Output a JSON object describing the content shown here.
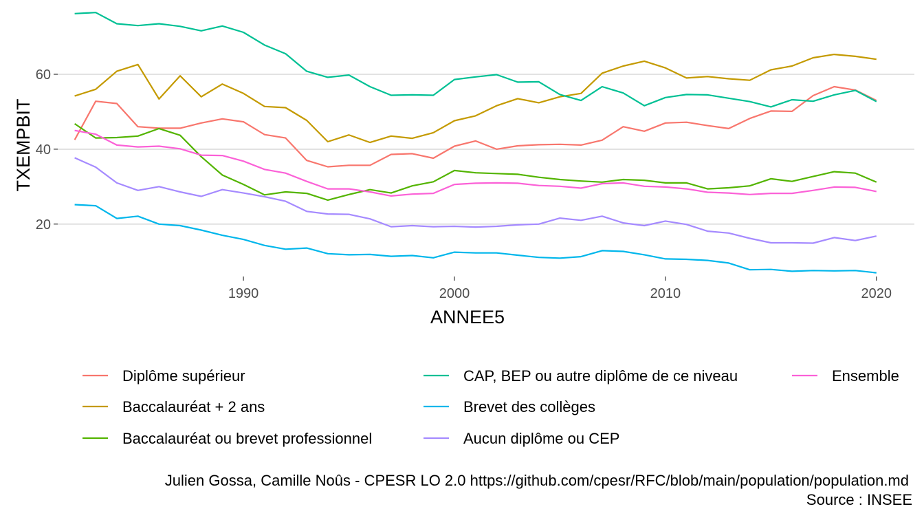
{
  "chart_data": {
    "type": "line",
    "xlabel": "ANNEE5",
    "ylabel": "TXEMPBIT",
    "xlim": [
      1981.2,
      2021.8
    ],
    "ylim": [
      6.0,
      78.0
    ],
    "x_ticks": [
      1990,
      2000,
      2010,
      2020
    ],
    "y_ticks": [
      20,
      40,
      60
    ],
    "grid": "horizontal major lines only",
    "legend_position": "bottom",
    "x": [
      1982,
      1983,
      1984,
      1985,
      1986,
      1987,
      1988,
      1989,
      1990,
      1991,
      1992,
      1993,
      1994,
      1995,
      1996,
      1997,
      1998,
      1999,
      2000,
      2001,
      2002,
      2003,
      2004,
      2005,
      2006,
      2007,
      2008,
      2009,
      2010,
      2011,
      2012,
      2013,
      2014,
      2015,
      2016,
      2017,
      2018,
      2019,
      2020
    ],
    "series": [
      {
        "name": "Diplôme supérieur",
        "color": "#F8766D",
        "values": [
          42.5,
          52.8,
          52.2,
          46.0,
          45.6,
          45.6,
          47.0,
          48.1,
          47.3,
          43.9,
          43.0,
          37.0,
          35.3,
          35.7,
          35.7,
          38.6,
          38.8,
          37.6,
          40.8,
          42.2,
          40.0,
          40.9,
          41.2,
          41.3,
          41.1,
          42.4,
          46.0,
          44.8,
          47.0,
          47.2,
          46.3,
          45.5,
          48.2,
          50.2,
          50.1,
          54.3,
          56.7,
          55.8,
          53.0
        ]
      },
      {
        "name": "Baccalauréat + 2 ans",
        "color": "#C49A00",
        "values": [
          54.2,
          56.0,
          60.8,
          62.6,
          53.4,
          59.6,
          54.0,
          57.4,
          54.9,
          51.4,
          51.1,
          47.7,
          42.0,
          43.8,
          41.8,
          43.5,
          42.9,
          44.4,
          47.6,
          48.9,
          51.6,
          53.5,
          52.4,
          54.0,
          54.9,
          60.3,
          62.2,
          63.5,
          61.7,
          59.0,
          59.4,
          58.8,
          58.4,
          61.2,
          62.2,
          64.4,
          65.3,
          64.8,
          64.0
        ]
      },
      {
        "name": "Baccalauréat ou brevet professionnel",
        "color": "#53B400",
        "values": [
          46.8,
          43.0,
          43.1,
          43.5,
          45.5,
          43.7,
          38.0,
          33.1,
          30.6,
          27.8,
          28.6,
          28.2,
          26.4,
          27.9,
          29.2,
          28.3,
          30.2,
          31.3,
          34.3,
          33.7,
          33.5,
          33.3,
          32.5,
          31.9,
          31.5,
          31.2,
          31.9,
          31.7,
          31.0,
          31.0,
          29.4,
          29.7,
          30.2,
          32.1,
          31.4,
          32.7,
          34.0,
          33.6,
          31.2
        ]
      },
      {
        "name": "CAP, BEP ou autre diplôme de ce niveau",
        "color": "#00C094",
        "values": [
          76.2,
          76.5,
          73.5,
          73.0,
          73.5,
          72.8,
          71.6,
          72.9,
          71.2,
          67.8,
          65.5,
          60.8,
          59.2,
          59.8,
          56.7,
          54.4,
          54.5,
          54.4,
          58.6,
          59.3,
          59.9,
          57.9,
          58.0,
          54.6,
          53.0,
          56.7,
          55.0,
          51.6,
          53.8,
          54.6,
          54.5,
          53.6,
          52.7,
          51.3,
          53.2,
          52.8,
          54.5,
          55.7,
          52.7
        ]
      },
      {
        "name": "Brevet des collèges",
        "color": "#00B6EB",
        "values": [
          25.2,
          24.9,
          21.5,
          22.1,
          20.0,
          19.6,
          18.4,
          17.0,
          15.9,
          14.3,
          13.3,
          13.6,
          12.1,
          11.8,
          11.9,
          11.4,
          11.6,
          11.0,
          12.5,
          12.3,
          12.3,
          11.7,
          11.1,
          10.9,
          11.3,
          12.9,
          12.7,
          11.8,
          10.7,
          10.6,
          10.3,
          9.6,
          7.8,
          7.9,
          7.4,
          7.6,
          7.5,
          7.6,
          7.0
        ]
      },
      {
        "name": "Aucun diplôme ou CEP",
        "color": "#A58AFF",
        "values": [
          37.7,
          35.2,
          31.0,
          29.0,
          30.0,
          28.6,
          27.4,
          29.2,
          28.3,
          27.3,
          26.1,
          23.4,
          22.7,
          22.6,
          21.4,
          19.3,
          19.6,
          19.3,
          19.4,
          19.2,
          19.4,
          19.8,
          20.0,
          21.6,
          21.0,
          22.1,
          20.3,
          19.6,
          20.8,
          19.9,
          18.1,
          17.6,
          16.2,
          15.0,
          15.0,
          14.9,
          16.4,
          15.6,
          16.8
        ]
      },
      {
        "name": "Ensemble",
        "color": "#FB61D7",
        "values": [
          45.0,
          44.0,
          41.1,
          40.6,
          40.8,
          40.1,
          38.4,
          38.3,
          36.8,
          34.6,
          33.6,
          31.4,
          29.4,
          29.4,
          28.6,
          27.5,
          28.0,
          28.2,
          30.6,
          30.9,
          31.0,
          30.9,
          30.3,
          30.1,
          29.6,
          30.8,
          31.0,
          30.1,
          29.9,
          29.4,
          28.5,
          28.3,
          27.9,
          28.2,
          28.2,
          29.0,
          29.9,
          29.8,
          28.7
        ]
      }
    ],
    "legend_layout": {
      "columns": [
        [
          "Diplôme supérieur",
          "Baccalauréat + 2 ans",
          "Baccalauréat ou brevet professionnel"
        ],
        [
          "CAP, BEP ou autre diplôme de ce niveau",
          "Brevet des collèges",
          "Aucun diplôme ou CEP"
        ],
        [
          "Ensemble"
        ]
      ]
    },
    "caption": {
      "line1": "Julien Gossa, Camille Noûs - CPESR LO 2.0 https://github.com/cpesr/RFC/blob/main/population/population.md",
      "line2": "Source : INSEE"
    }
  },
  "colors": {
    "grid": "#d9d9d9",
    "background": "#ffffff"
  }
}
